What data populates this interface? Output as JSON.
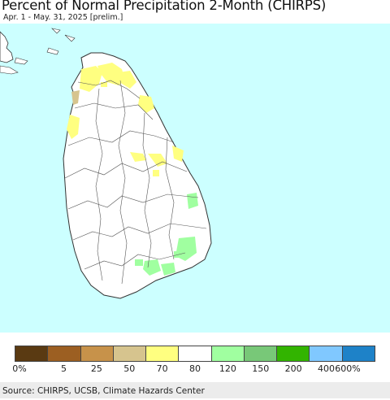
{
  "title": "Percent of Normal Precipitation 2-Month (CHIRPS)",
  "subtitle": "Apr. 1 - May. 31, 2025 [prelim.]",
  "source": "Source: CHIRPS, UCSB, Climate Hazards Center",
  "colors": {
    "ocean": "#ccffff",
    "land": "#ffffff",
    "boundary": "#555555"
  },
  "legend": {
    "colors": [
      "#5a3a12",
      "#9c5f22",
      "#c7924a",
      "#d6c48e",
      "#ffff80",
      "#ffffff",
      "#a0ffa0",
      "#78c878",
      "#32b400",
      "#80c8ff",
      "#1e82c8"
    ],
    "labels": [
      "0%",
      "5",
      "25",
      "50",
      "70",
      "80",
      "120",
      "150",
      "200",
      "400",
      "600%"
    ]
  }
}
